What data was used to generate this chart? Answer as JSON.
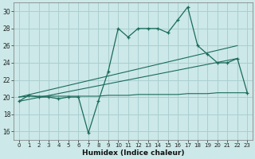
{
  "title": "",
  "xlabel": "Humidex (Indice chaleur)",
  "background_color": "#cce8e8",
  "grid_color": "#aacfcf",
  "line_color": "#1a6b5a",
  "xlim": [
    -0.5,
    23.5
  ],
  "ylim": [
    15.0,
    31.0
  ],
  "yticks": [
    16,
    18,
    20,
    22,
    24,
    26,
    28,
    30
  ],
  "xticks": [
    0,
    1,
    2,
    3,
    4,
    5,
    6,
    7,
    8,
    9,
    10,
    11,
    12,
    13,
    14,
    15,
    16,
    17,
    18,
    19,
    20,
    21,
    22,
    23
  ],
  "series1_x": [
    0,
    1,
    2,
    3,
    4,
    5,
    6,
    7,
    8,
    9,
    10,
    11,
    12,
    13,
    14,
    15,
    16,
    17,
    18,
    19,
    20,
    21,
    22,
    23
  ],
  "series1_y": [
    19.5,
    20.2,
    20.0,
    20.0,
    19.8,
    20.0,
    20.0,
    15.8,
    19.5,
    23.0,
    28.0,
    27.0,
    28.0,
    28.0,
    28.0,
    27.5,
    29.0,
    30.5,
    26.0,
    25.0,
    24.0,
    24.0,
    24.5,
    20.5
  ],
  "series2_x": [
    0,
    22
  ],
  "series2_y": [
    20.0,
    26.0
  ],
  "series3_x": [
    0,
    22
  ],
  "series3_y": [
    19.5,
    24.5
  ],
  "series4_x": [
    0,
    1,
    2,
    3,
    4,
    5,
    6,
    7,
    8,
    9,
    10,
    11,
    12,
    13,
    14,
    15,
    16,
    17,
    18,
    19,
    20,
    21,
    22,
    23
  ],
  "series4_y": [
    20.0,
    20.1,
    20.1,
    20.1,
    20.1,
    20.1,
    20.1,
    20.1,
    20.1,
    20.2,
    20.2,
    20.2,
    20.3,
    20.3,
    20.3,
    20.3,
    20.3,
    20.4,
    20.4,
    20.4,
    20.5,
    20.5,
    20.5,
    20.5
  ]
}
